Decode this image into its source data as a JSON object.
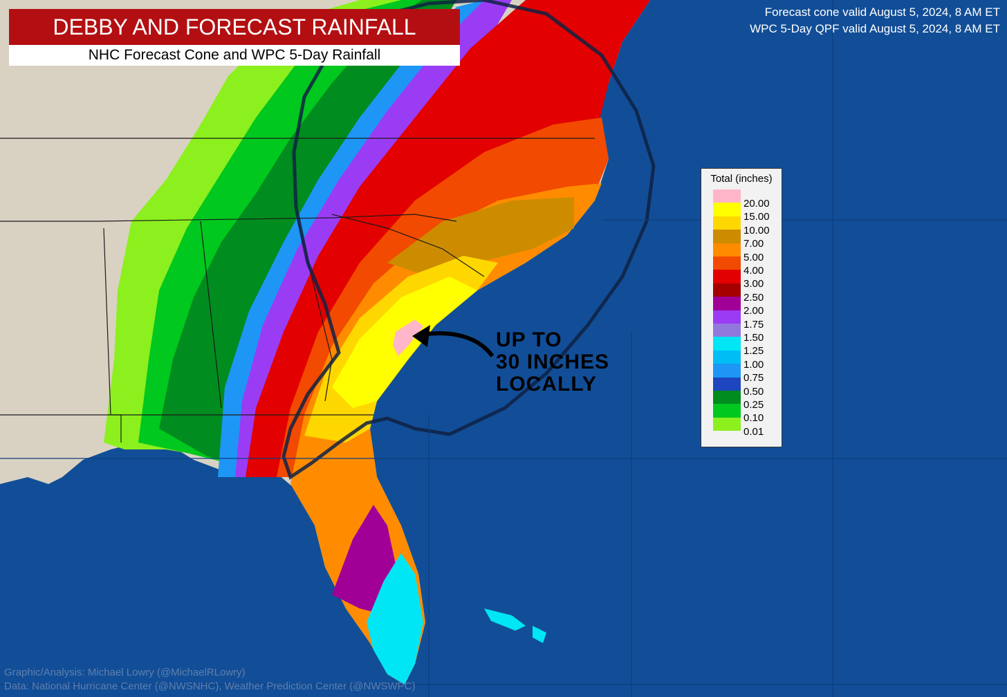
{
  "title": "DEBBY AND FORECAST RAINFALL",
  "subtitle": "NHC Forecast Cone and WPC 5-Day Rainfall",
  "valid_lines": [
    "Forecast cone valid August 5, 2024, 8 AM ET",
    "WPC 5-Day QPF valid August 5, 2024, 8 AM ET"
  ],
  "legend": {
    "title": "Total (inches)",
    "swatches": [
      "#ffb6c8",
      "#ffff00",
      "#ffd700",
      "#cd8c00",
      "#ff8c00",
      "#f24a00",
      "#e30000",
      "#a50000",
      "#a00096",
      "#9b3cf5",
      "#9178dc",
      "#00e6f5",
      "#00bef5",
      "#1e96f5",
      "#1e46be",
      "#008c1e",
      "#00c81e",
      "#8cf01e"
    ],
    "labels": [
      "20.00",
      "15.00",
      "10.00",
      "7.00",
      "5.00",
      "4.00",
      "3.00",
      "2.50",
      "2.00",
      "1.75",
      "1.50",
      "1.25",
      "1.00",
      "0.75",
      "0.50",
      "0.25",
      "0.10",
      "0.01"
    ]
  },
  "annotation": [
    "UP TO",
    "30 INCHES",
    "LOCALLY"
  ],
  "credits": [
    "Graphic/Analysis: Michael Lowry (@MichaelRLowry)",
    "Data: National Hurricane Center (@NWSNHC), Weather Prediction Center (@NWSWPC)"
  ],
  "colors": {
    "ocean": "#124e97",
    "land_no_rain": "#d9d2c3",
    "title_bar": "#b30f12",
    "cone_outline": "#0f2244"
  }
}
